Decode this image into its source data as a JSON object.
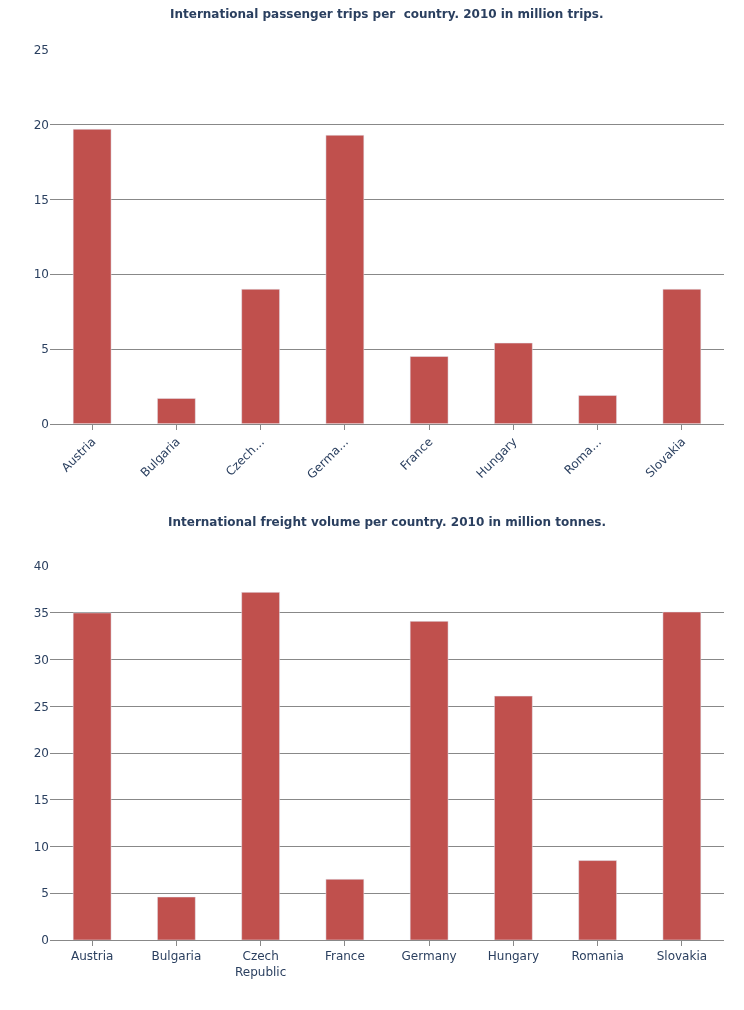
{
  "chart_data": [
    {
      "type": "bar",
      "title": "International passenger trips per  country. 2010 in million trips.",
      "categories": [
        "Austria",
        "Bulgaria",
        "Czech…",
        "Germa…",
        "France",
        "Hungary",
        "Roma…",
        "Slovakia"
      ],
      "series": [
        {
          "color": "#c0504d",
          "values": [
            19.7,
            1.7,
            9.0,
            19.3,
            4.5,
            5.4,
            1.9,
            9.0
          ]
        }
      ],
      "ylim": [
        0,
        25
      ],
      "yticks": [
        0,
        5,
        10,
        15,
        20,
        25
      ],
      "grid": "y",
      "legend": false
    },
    {
      "type": "bar",
      "title": "International freight volume per country. 2010 in million tonnes.",
      "categories": [
        "Austria",
        "Bulgaria",
        "Czech\nRepublic",
        "France",
        "Germany",
        "Hungary",
        "Romania",
        "Slovakia"
      ],
      "series": [
        {
          "color": "#c0504d",
          "values": [
            35.0,
            4.6,
            37.2,
            6.5,
            34.1,
            26.1,
            8.5,
            35.1
          ]
        }
      ],
      "ylim": [
        0,
        40
      ],
      "yticks": [
        0,
        5,
        10,
        15,
        20,
        25,
        30,
        35,
        40
      ],
      "grid": "y",
      "legend": false
    }
  ]
}
